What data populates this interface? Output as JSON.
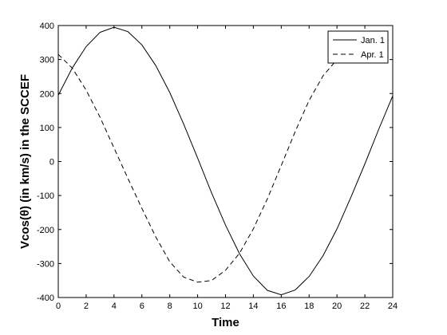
{
  "chart_data": {
    "type": "line",
    "title": "",
    "xlabel": "Time",
    "ylabel": "Vcos(θ) (in km/s) in the SCCEF",
    "xlim": [
      0,
      24
    ],
    "ylim": [
      -400,
      400
    ],
    "xticks": [
      0,
      2,
      4,
      6,
      8,
      10,
      12,
      14,
      16,
      18,
      20,
      22,
      24
    ],
    "yticks": [
      -400,
      -300,
      -200,
      -100,
      0,
      100,
      200,
      300,
      400
    ],
    "grid": false,
    "legend_position": "top-right",
    "series": [
      {
        "name": "Jan. 1",
        "style": "solid",
        "x": [
          0,
          1,
          2,
          3,
          4,
          5,
          6,
          7,
          8,
          9,
          10,
          11,
          12,
          13,
          14,
          15,
          16,
          17,
          18,
          19,
          20,
          21,
          22,
          23,
          24
        ],
        "y": [
          195,
          275,
          338,
          380,
          395,
          382,
          343,
          282,
          203,
          110,
          10,
          -92,
          -187,
          -271,
          -337,
          -379,
          -392,
          -378,
          -338,
          -277,
          -198,
          -105,
          -7,
          95,
          193
        ]
      },
      {
        "name": "Apr. 1",
        "style": "dashed",
        "x": [
          0,
          1,
          2,
          3,
          4,
          5,
          6,
          7,
          8,
          9,
          10,
          11,
          12,
          13,
          14,
          15,
          16,
          17,
          18,
          19,
          20
        ],
        "y": [
          315,
          275,
          210,
          130,
          40,
          -50,
          -138,
          -222,
          -295,
          -340,
          -355,
          -350,
          -320,
          -270,
          -198,
          -110,
          -12,
          88,
          180,
          252,
          300
        ]
      }
    ]
  }
}
